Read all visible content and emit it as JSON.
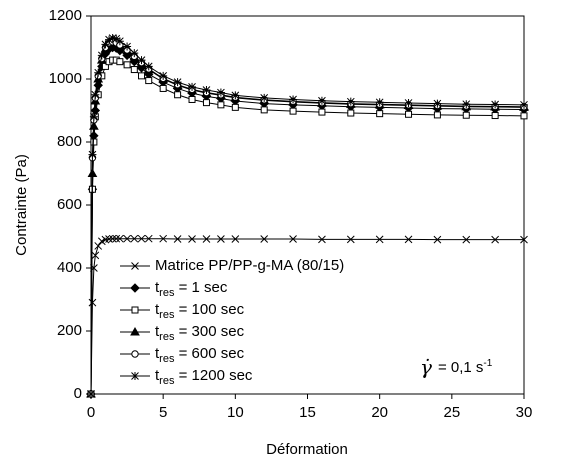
{
  "chart_data": {
    "type": "line",
    "xlabel": "Déformation",
    "ylabel": "Contrainte (Pa)",
    "xlim": [
      0,
      30
    ],
    "xticks": [
      0,
      5,
      10,
      15,
      20,
      25,
      30
    ],
    "ylim": [
      0,
      1200
    ],
    "yticks": [
      0,
      200,
      400,
      600,
      800,
      1000,
      1200
    ],
    "grid": false,
    "annotation": [
      "γ̇",
      "=  0,1 s",
      "-1"
    ],
    "x": [
      0,
      0.1,
      0.2,
      0.3,
      0.5,
      0.75,
      1,
      1.25,
      1.5,
      1.75,
      2,
      2.5,
      3,
      3.5,
      4,
      5,
      6,
      7,
      8,
      9,
      10,
      12,
      14,
      16,
      18,
      20,
      22,
      24,
      26,
      28,
      30
    ],
    "series": [
      {
        "name": [
          "Matrice PP/PP-g-MA (80/15)"
        ],
        "color": "#000000",
        "marker": "x",
        "values": [
          0,
          290,
          400,
          440,
          470,
          485,
          490,
          492,
          493,
          493,
          493,
          493,
          493,
          493,
          493,
          493,
          492,
          492,
          492,
          492,
          492,
          492,
          492,
          491,
          491,
          491,
          491,
          490,
          490,
          490,
          490
        ]
      },
      {
        "name": [
          "t",
          "res",
          " = 1 sec"
        ],
        "color": "#000000",
        "marker": "diamond",
        "values": [
          0,
          650,
          820,
          900,
          980,
          1040,
          1080,
          1095,
          1100,
          1098,
          1090,
          1075,
          1055,
          1035,
          1015,
          990,
          970,
          955,
          945,
          938,
          930,
          922,
          918,
          915,
          912,
          910,
          908,
          906,
          905,
          904,
          903
        ]
      },
      {
        "name": [
          "t",
          "res",
          " = 100 sec"
        ],
        "color": "#000000",
        "marker": "square",
        "values": [
          0,
          650,
          800,
          880,
          950,
          1010,
          1040,
          1055,
          1060,
          1060,
          1055,
          1045,
          1030,
          1010,
          995,
          970,
          950,
          935,
          925,
          918,
          910,
          902,
          898,
          895,
          892,
          890,
          888,
          886,
          885,
          884,
          883
        ]
      },
      {
        "name": [
          "t",
          "res",
          " = 300 sec"
        ],
        "color": "#000000",
        "marker": "triangle",
        "values": [
          0,
          700,
          850,
          930,
          1000,
          1060,
          1095,
          1110,
          1115,
          1112,
          1105,
          1090,
          1070,
          1050,
          1030,
          1000,
          980,
          965,
          955,
          948,
          940,
          932,
          927,
          923,
          920,
          918,
          916,
          914,
          912,
          911,
          910
        ]
      },
      {
        "name": [
          "t",
          "res",
          " = 600 sec"
        ],
        "color": "#000000",
        "marker": "circle",
        "values": [
          0,
          750,
          870,
          940,
          1010,
          1065,
          1100,
          1115,
          1118,
          1115,
          1108,
          1092,
          1072,
          1052,
          1032,
          1002,
          982,
          967,
          957,
          950,
          942,
          934,
          929,
          925,
          922,
          920,
          918,
          916,
          914,
          913,
          912
        ]
      },
      {
        "name": [
          "t",
          "res",
          " = 1200 sec"
        ],
        "color": "#000000",
        "marker": "star",
        "values": [
          0,
          760,
          880,
          950,
          1020,
          1075,
          1110,
          1125,
          1130,
          1128,
          1120,
          1103,
          1082,
          1060,
          1040,
          1010,
          990,
          975,
          965,
          957,
          948,
          940,
          935,
          931,
          928,
          926,
          924,
          922,
          920,
          919,
          918
        ]
      }
    ]
  }
}
